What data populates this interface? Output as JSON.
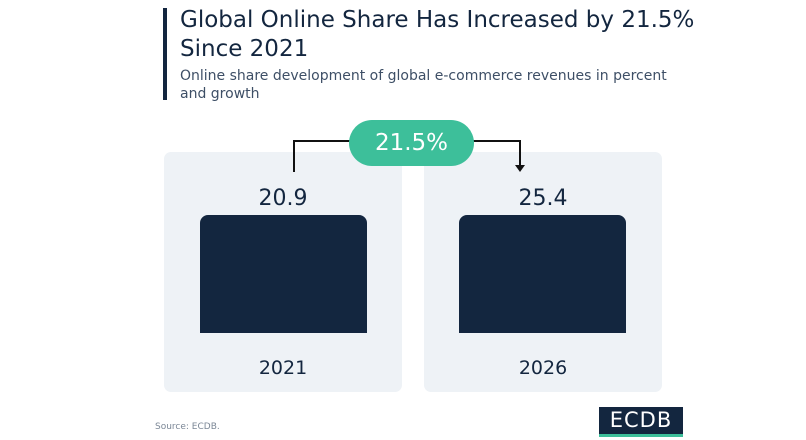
{
  "header": {
    "title": "Global Online Share Has Increased by 21.5% Since 2021",
    "subtitle": "Online share development of global e-commerce revenues in percent and growth"
  },
  "chart_data": {
    "type": "bar",
    "categories": [
      "2021",
      "2026"
    ],
    "values": [
      20.9,
      25.4
    ],
    "growth_label": "21.5%",
    "title": "Global Online Share Has Increased by 21.5% Since 2021",
    "subtitle": "Online share development of global e-commerce revenues in percent and growth"
  },
  "footer": {
    "source": "Source: ECDB.",
    "logo": "ECDB"
  },
  "colors": {
    "bar": "#13263f",
    "accent": "#3dbf9a",
    "panel": "#eef2f6"
  }
}
